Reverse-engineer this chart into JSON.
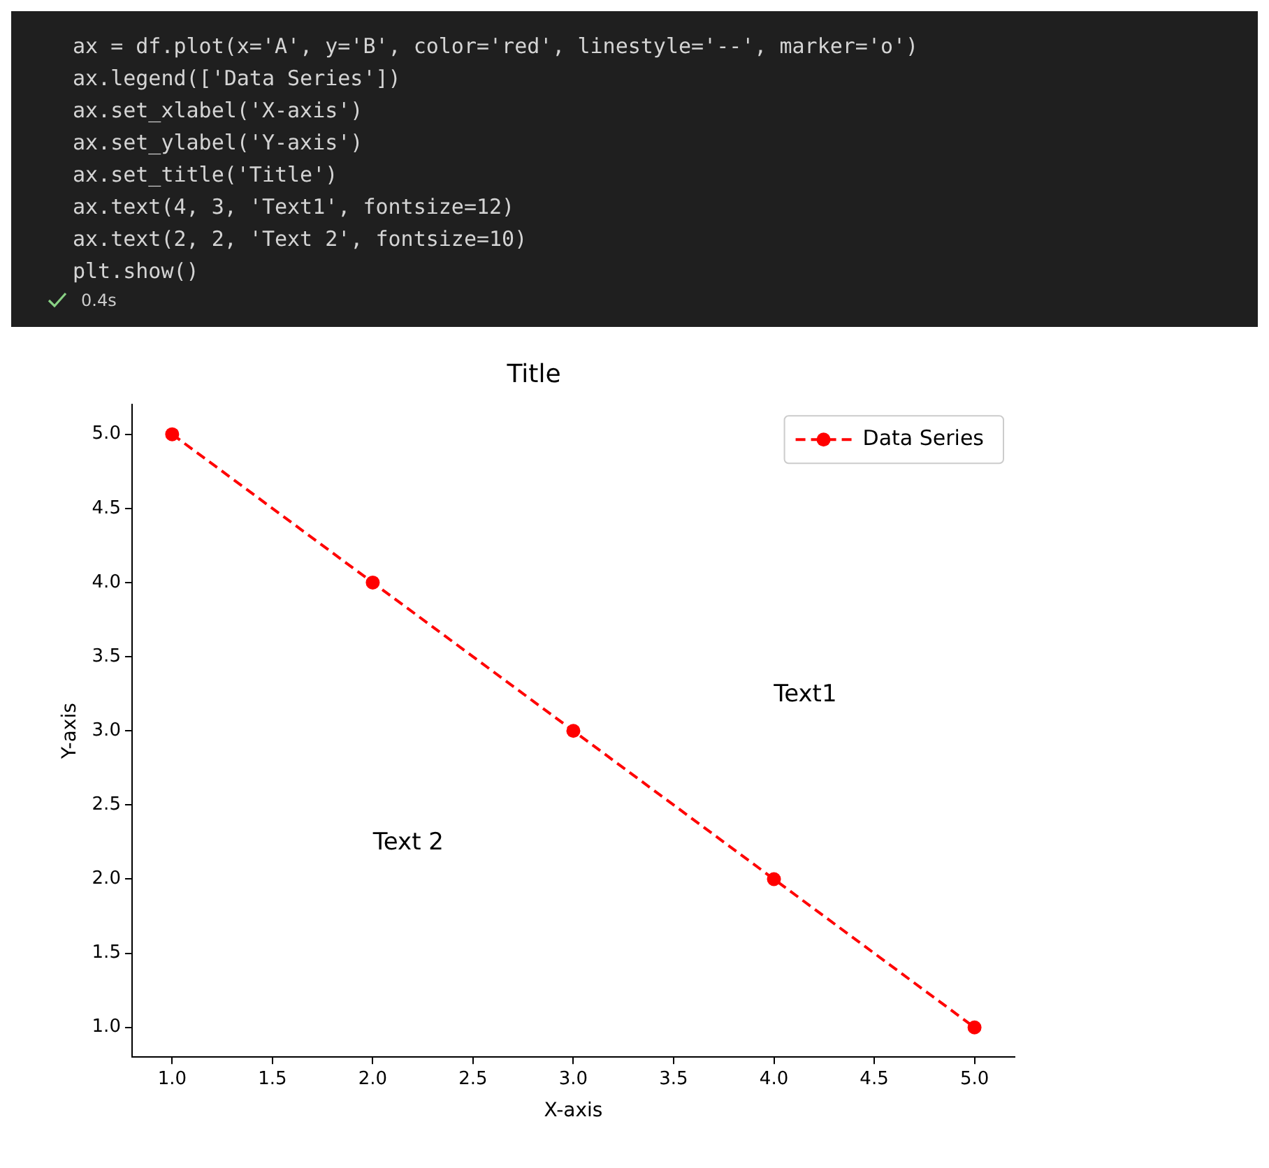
{
  "chart_data": {
    "type": "line",
    "title": "Title",
    "xlabel": "X-axis",
    "ylabel": "Y-axis",
    "x": [
      1,
      2,
      3,
      4,
      5
    ],
    "series": [
      {
        "name": "Data Series",
        "color": "#ff0000",
        "values": [
          5,
          4,
          3,
          2,
          1
        ]
      }
    ],
    "xlim": [
      0.8,
      5.2
    ],
    "ylim": [
      0.8,
      5.2
    ],
    "xticks": [
      {
        "value": 1,
        "label": "1.0"
      },
      {
        "value": 1.5,
        "label": "1.5"
      },
      {
        "value": 2,
        "label": "2.0"
      },
      {
        "value": 2.5,
        "label": "2.5"
      },
      {
        "value": 3,
        "label": "3.0"
      },
      {
        "value": 3.5,
        "label": "3.5"
      },
      {
        "value": 4,
        "label": "4.0"
      },
      {
        "value": 4.5,
        "label": "4.5"
      },
      {
        "value": 5,
        "label": "5.0"
      }
    ],
    "yticks": [
      {
        "value": 1,
        "label": "1.0"
      },
      {
        "value": 1.5,
        "label": "1.5"
      },
      {
        "value": 2,
        "label": "2.0"
      },
      {
        "value": 2.5,
        "label": "2.5"
      },
      {
        "value": 3,
        "label": "3.0"
      },
      {
        "value": 3.5,
        "label": "3.5"
      },
      {
        "value": 4,
        "label": "4.0"
      },
      {
        "value": 4.5,
        "label": "4.5"
      },
      {
        "value": 5,
        "label": "5.0"
      }
    ],
    "marker": "circle",
    "line_style": "dashed",
    "legend": "top right",
    "grid": false,
    "annotations": [
      "ax = df.plot(x='A', y='B', color='red', linestyle='--', marker='o')",
      "ax.legend(['Data Series'])",
      "ax.set_xlabel('X-axis')",
      "ax.set_ylabel('Y-axis')",
      "ax.set_title('Title')",
      "ax.text(4, 3, 'Text1', fontsize=12)",
      "ax.text(2, 2, 'Text 2', fontsize=10)",
      "plt.show()",
      "0.4s",
      "Text1",
      "Text 2"
    ]
  }
}
